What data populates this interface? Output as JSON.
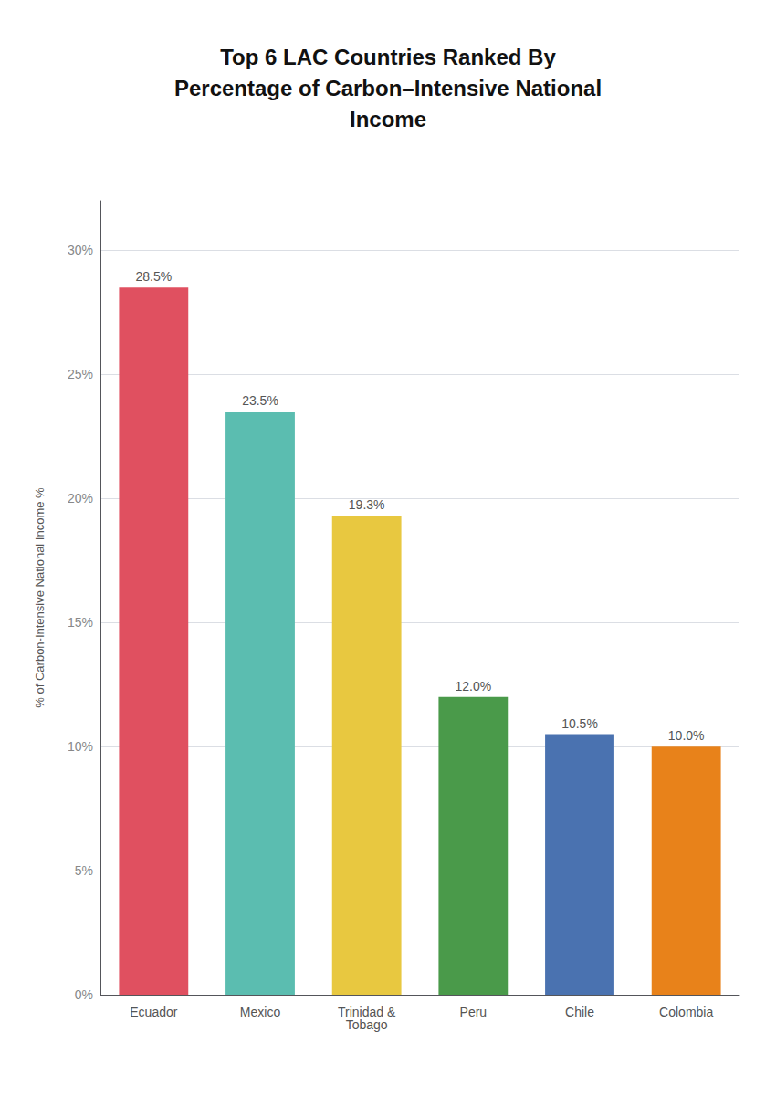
{
  "chart_data": {
    "type": "bar",
    "title": "Top 6 LAC Countries Ranked By\nPercentage of Carbon–Intensive National\nIncome",
    "categories": [
      "Ecuador",
      "Mexico",
      "Trinidad &\nTobago",
      "Peru",
      "Chile",
      "Colombia"
    ],
    "values": [
      28.5,
      23.5,
      19.3,
      12.0,
      10.5,
      10.0
    ],
    "value_labels": [
      "28.5%",
      "23.5%",
      "19.3%",
      "12.0%",
      "10.5%",
      "10.0%"
    ],
    "colors": [
      "#E05060",
      "#5BBDB0",
      "#E8C840",
      "#4A9A4A",
      "#4A72B0",
      "#E8821A"
    ],
    "ylabel": "% of Carbon-Intensive National Income %",
    "ylim": [
      0,
      32
    ],
    "yticks": [
      {
        "value": 0,
        "label": "0%"
      },
      {
        "value": 5,
        "label": "5%"
      },
      {
        "value": 10,
        "label": "10%"
      },
      {
        "value": 15,
        "label": "15%"
      },
      {
        "value": 20,
        "label": "20%"
      },
      {
        "value": 25,
        "label": "25%"
      },
      {
        "value": 30,
        "label": "30%"
      }
    ],
    "grid": true,
    "data_labels": true
  }
}
